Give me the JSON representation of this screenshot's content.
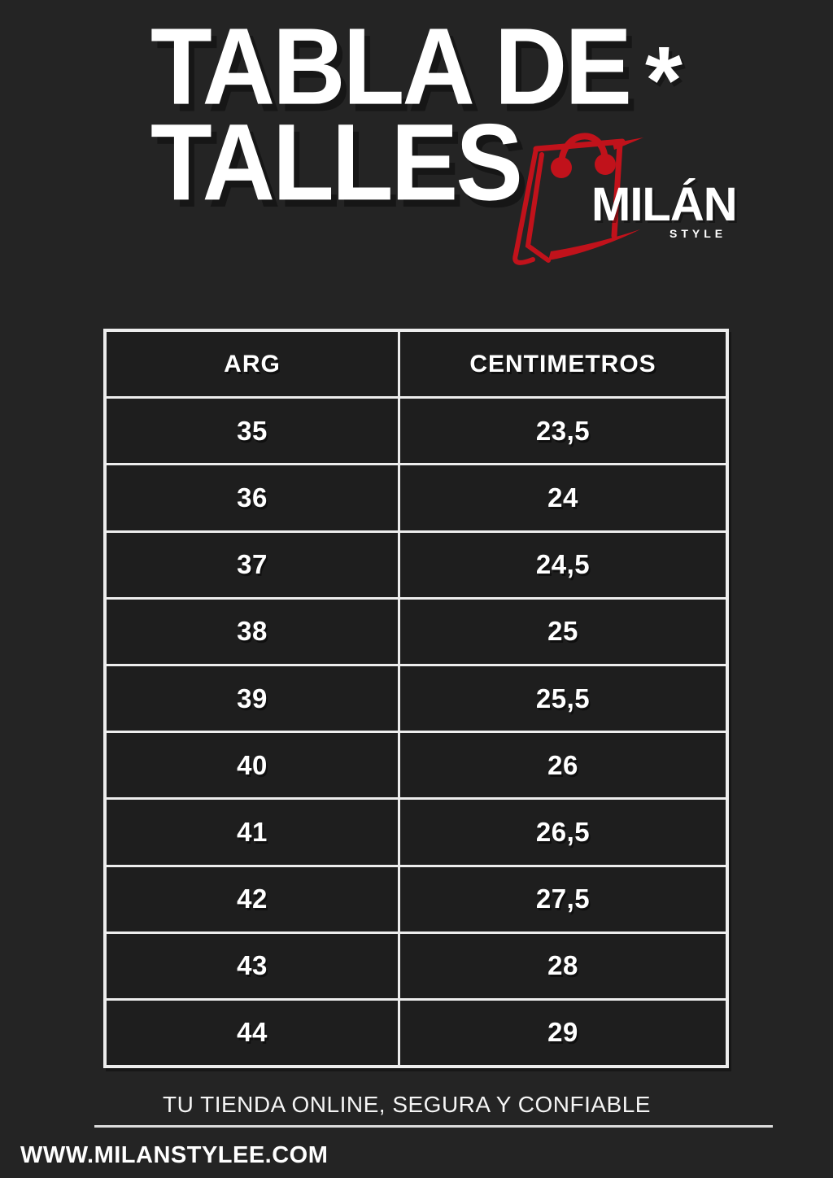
{
  "meta": {
    "background_color": "#242424",
    "cell_color": "#1e1e1e",
    "accent_red": "#c1121b",
    "text_color": "#ffffff"
  },
  "header": {
    "title_line1": "TABLA DE",
    "title_line2": "TALLES",
    "decoration": "*"
  },
  "logo": {
    "icon": "shopping-bag-icon",
    "brand": "MILÁN",
    "subtitle": "STYLE"
  },
  "table": {
    "columns": [
      "ARG",
      "CENTIMETROS"
    ],
    "rows": [
      [
        "35",
        "23,5"
      ],
      [
        "36",
        "24"
      ],
      [
        "37",
        "24,5"
      ],
      [
        "38",
        "25"
      ],
      [
        "39",
        "25,5"
      ],
      [
        "40",
        "26"
      ],
      [
        "41",
        "26,5"
      ],
      [
        "42",
        "27,5"
      ],
      [
        "43",
        "28"
      ],
      [
        "44",
        "29"
      ]
    ]
  },
  "footer": {
    "tagline": "TU TIENDA ONLINE, SEGURA Y CONFIABLE",
    "website": "WWW.MILANSTYLEE.COM"
  }
}
